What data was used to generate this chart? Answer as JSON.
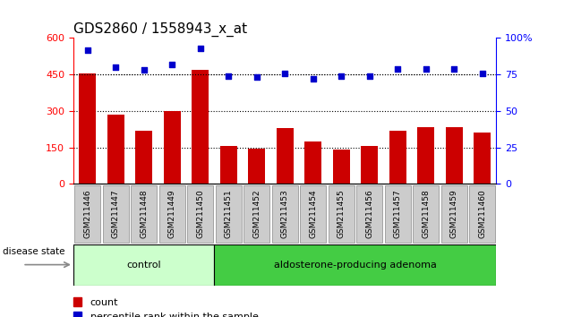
{
  "title": "GDS2860 / 1558943_x_at",
  "samples": [
    "GSM211446",
    "GSM211447",
    "GSM211448",
    "GSM211449",
    "GSM211450",
    "GSM211451",
    "GSM211452",
    "GSM211453",
    "GSM211454",
    "GSM211455",
    "GSM211456",
    "GSM211457",
    "GSM211458",
    "GSM211459",
    "GSM211460"
  ],
  "counts": [
    455,
    285,
    220,
    300,
    470,
    155,
    145,
    230,
    175,
    140,
    155,
    220,
    235,
    235,
    210
  ],
  "percentiles": [
    92,
    80,
    78,
    82,
    93,
    74,
    73,
    76,
    72,
    74,
    74,
    79,
    79,
    79,
    76
  ],
  "n_control": 5,
  "group_labels": [
    "control",
    "aldosterone-producing adenoma"
  ],
  "control_color": "#ccffcc",
  "adenoma_color": "#44cc44",
  "bar_color": "#cc0000",
  "dot_color": "#0000cc",
  "left_ylim": [
    0,
    600
  ],
  "left_yticks": [
    0,
    150,
    300,
    450,
    600
  ],
  "right_ylim": [
    0,
    100
  ],
  "right_yticks": [
    0,
    25,
    50,
    75,
    100
  ],
  "grid_values": [
    150,
    300,
    450
  ],
  "disease_state_label": "disease state",
  "legend_items": [
    {
      "label": "count",
      "color": "#cc0000"
    },
    {
      "label": "percentile rank within the sample",
      "color": "#0000cc"
    }
  ],
  "tick_label_color": "#cccccc",
  "title_fontsize": 11,
  "bar_width": 0.6,
  "dot_size": 18
}
